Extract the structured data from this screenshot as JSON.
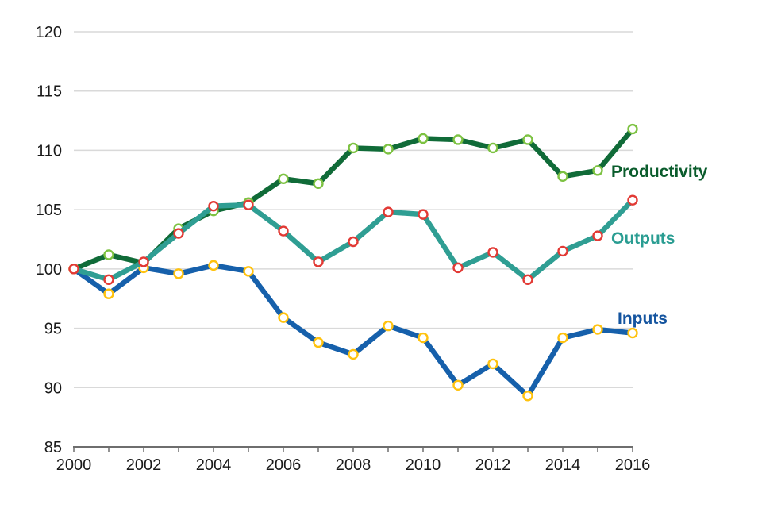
{
  "chart_data": {
    "type": "line",
    "title": "",
    "xlabel": "",
    "ylabel": "",
    "x": [
      2000,
      2001,
      2002,
      2003,
      2004,
      2005,
      2006,
      2007,
      2008,
      2009,
      2010,
      2011,
      2012,
      2013,
      2014,
      2015,
      2016
    ],
    "xtick_label_every": 2,
    "ylim": [
      85,
      120
    ],
    "ytick_step": 5,
    "grid": "horizontal",
    "legend_position": "inline-labels-right",
    "axis_color": "#6e6e6e",
    "grid_color": "#d9d9d9",
    "tick_label_color": "#1a1a1a",
    "series": [
      {
        "name": "Productivity",
        "color": "#106b38",
        "marker_ring": "#7dc242",
        "marker_fill": "#ffffff",
        "label_color": "#0a5c2c",
        "values": [
          100,
          101.2,
          100.5,
          103.4,
          104.9,
          105.6,
          107.6,
          107.2,
          110.2,
          110.1,
          111.0,
          110.9,
          110.2,
          110.9,
          107.8,
          108.3,
          111.8
        ]
      },
      {
        "name": "Outputs",
        "color": "#2f9e93",
        "marker_ring": "#e23a35",
        "marker_fill": "#ffffff",
        "label_color": "#2a9d92",
        "values": [
          100,
          99.1,
          100.6,
          103.0,
          105.3,
          105.4,
          103.2,
          100.6,
          102.3,
          104.8,
          104.6,
          100.1,
          101.4,
          99.1,
          101.5,
          102.8,
          105.8
        ]
      },
      {
        "name": "Inputs",
        "color": "#1660ab",
        "marker_ring": "#ffc20e",
        "marker_fill": "#ffffff",
        "label_color": "#14549f",
        "values": [
          100,
          97.9,
          100.1,
          99.6,
          100.3,
          99.8,
          95.9,
          93.8,
          92.8,
          95.2,
          94.2,
          90.2,
          92.0,
          89.3,
          94.2,
          94.9,
          94.6
        ]
      }
    ]
  }
}
